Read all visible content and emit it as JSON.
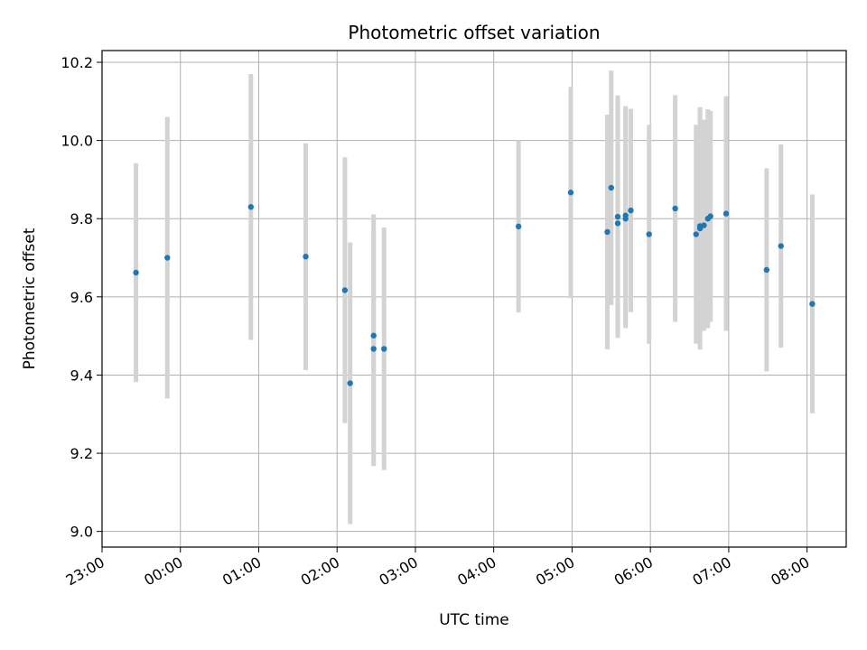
{
  "chart_data": {
    "type": "scatter",
    "title": "Photometric offset variation",
    "xlabel": "UTC time",
    "ylabel": "Photometric offset",
    "x_ticks": [
      "23:00",
      "00:00",
      "01:00",
      "02:00",
      "03:00",
      "04:00",
      "05:00",
      "06:00",
      "07:00",
      "08:00"
    ],
    "y_ticks": [
      "9.0",
      "9.2",
      "9.4",
      "9.6",
      "9.8",
      "10.0",
      "10.2"
    ],
    "xlim": [
      "23:00",
      "08:30"
    ],
    "ylim": [
      8.96,
      10.23
    ],
    "grid": true,
    "point_color": "#1f77b4",
    "errorbar_color": "#d3d3d3",
    "points": [
      {
        "x": "23:26",
        "y": 9.662,
        "err": 0.28
      },
      {
        "x": "23:50",
        "y": 9.7,
        "err": 0.36
      },
      {
        "x": "00:54",
        "y": 9.83,
        "err": 0.34
      },
      {
        "x": "01:36",
        "y": 9.703,
        "err": 0.29
      },
      {
        "x": "02:06",
        "y": 9.617,
        "err": 0.34
      },
      {
        "x": "02:10",
        "y": 9.379,
        "err": 0.36
      },
      {
        "x": "02:28",
        "y": 9.501,
        "err": 0.31
      },
      {
        "x": "02:28",
        "y": 9.467,
        "err": 0.3
      },
      {
        "x": "02:36",
        "y": 9.467,
        "err": 0.31
      },
      {
        "x": "04:19",
        "y": 9.78,
        "err": 0.22
      },
      {
        "x": "04:59",
        "y": 9.867,
        "err": 0.27
      },
      {
        "x": "05:27",
        "y": 9.766,
        "err": 0.3
      },
      {
        "x": "05:30",
        "y": 9.879,
        "err": 0.3
      },
      {
        "x": "05:35",
        "y": 9.805,
        "err": 0.31
      },
      {
        "x": "05:35",
        "y": 9.788,
        "err": 0.29
      },
      {
        "x": "05:41",
        "y": 9.808,
        "err": 0.28
      },
      {
        "x": "05:41",
        "y": 9.8,
        "err": 0.28
      },
      {
        "x": "05:45",
        "y": 9.821,
        "err": 0.26
      },
      {
        "x": "05:59",
        "y": 9.76,
        "err": 0.28
      },
      {
        "x": "06:19",
        "y": 9.826,
        "err": 0.29
      },
      {
        "x": "06:35",
        "y": 9.76,
        "err": 0.28
      },
      {
        "x": "06:38",
        "y": 9.775,
        "err": 0.31
      },
      {
        "x": "06:38",
        "y": 9.781,
        "err": 0.3
      },
      {
        "x": "06:41",
        "y": 9.783,
        "err": 0.27
      },
      {
        "x": "06:44",
        "y": 9.8,
        "err": 0.28
      },
      {
        "x": "06:46",
        "y": 9.806,
        "err": 0.27
      },
      {
        "x": "06:58",
        "y": 9.813,
        "err": 0.3
      },
      {
        "x": "07:29",
        "y": 9.669,
        "err": 0.26
      },
      {
        "x": "07:40",
        "y": 9.73,
        "err": 0.26
      },
      {
        "x": "08:04",
        "y": 9.582,
        "err": 0.28
      }
    ]
  }
}
